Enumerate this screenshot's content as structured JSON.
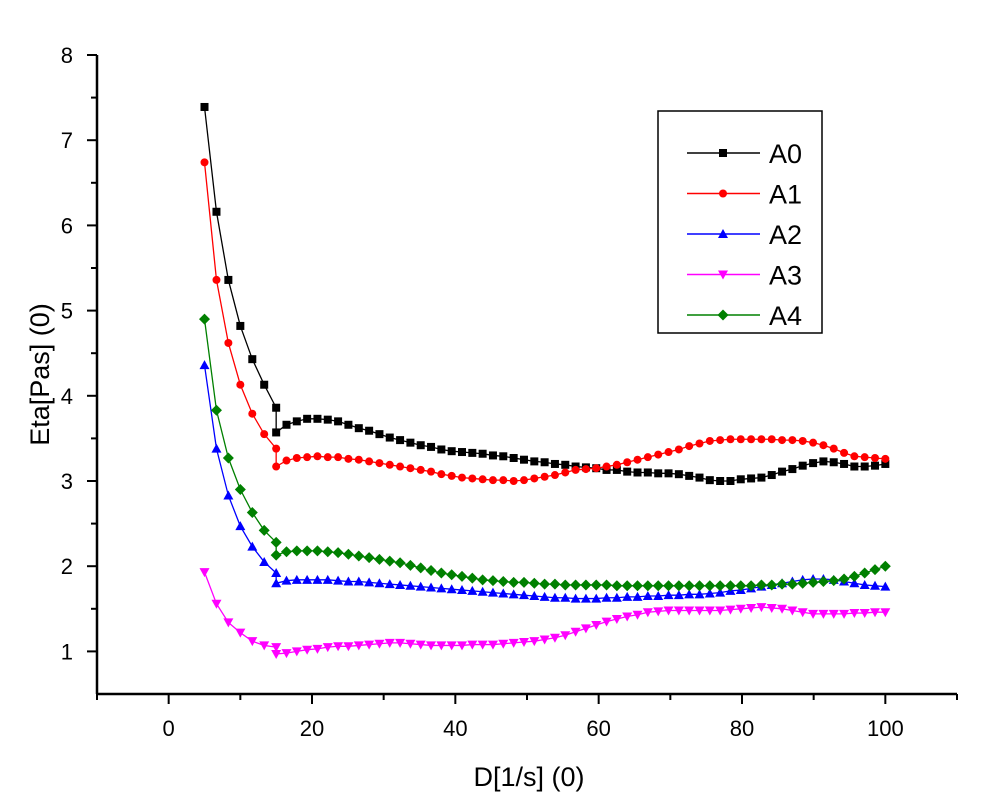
{
  "chart_data": {
    "type": "line",
    "title": "",
    "xlabel": "D[1/s] (0)",
    "ylabel": "Eta[Pas] (0)",
    "xlim": [
      -10,
      110
    ],
    "ylim": [
      0.5,
      8
    ],
    "x_major_ticks": [
      0,
      20,
      40,
      60,
      80,
      100
    ],
    "x_tick_labels": [
      "0",
      "20",
      "40",
      "60",
      "80",
      "100"
    ],
    "x_minor_ticks": [
      -10,
      10,
      30,
      50,
      70,
      90,
      110
    ],
    "y_major_ticks": [
      1,
      2,
      3,
      4,
      5,
      6,
      7,
      8
    ],
    "y_tick_labels": [
      "1",
      "2",
      "3",
      "4",
      "5",
      "6",
      "7",
      "8"
    ],
    "y_minor_ticks": [
      1.5,
      2.5,
      3.5,
      4.5,
      5.5,
      6.5,
      7.5
    ],
    "grid": false,
    "legend_position": "top-right",
    "x_segment1": [
      5,
      6.67,
      8.33,
      10,
      11.67,
      13.33,
      15
    ],
    "x_segment2": [
      15,
      16.44,
      17.88,
      19.32,
      20.76,
      22.2,
      23.64,
      25.08,
      26.53,
      27.97,
      29.41,
      30.85,
      32.29,
      33.73,
      35.17,
      36.61,
      38.05,
      39.49,
      40.93,
      42.37,
      43.81,
      45.25,
      46.69,
      48.14,
      49.58,
      51.02,
      52.46,
      53.9,
      55.34,
      56.78,
      58.22,
      59.66,
      61.1,
      62.54,
      63.98,
      65.42,
      66.86,
      68.31,
      69.75,
      71.19,
      72.63,
      74.07,
      75.51,
      76.95,
      78.39,
      79.83,
      81.27,
      82.71,
      84.15,
      85.59,
      87.03,
      88.47,
      89.92,
      91.36,
      92.8,
      94.24,
      95.68,
      97.12,
      98.56,
      100
    ],
    "series": [
      {
        "name": "A0",
        "color": "#000000",
        "marker": "square",
        "segment1": [
          7.39,
          6.16,
          5.36,
          4.82,
          4.43,
          4.13,
          3.86
        ],
        "segment2": [
          3.57,
          3.66,
          3.7,
          3.73,
          3.73,
          3.72,
          3.7,
          3.66,
          3.62,
          3.59,
          3.55,
          3.51,
          3.48,
          3.45,
          3.42,
          3.4,
          3.37,
          3.35,
          3.34,
          3.33,
          3.32,
          3.3,
          3.29,
          3.27,
          3.25,
          3.23,
          3.22,
          3.2,
          3.19,
          3.17,
          3.16,
          3.15,
          3.13,
          3.13,
          3.11,
          3.1,
          3.1,
          3.09,
          3.09,
          3.08,
          3.06,
          3.04,
          3.01,
          3.0,
          3.0,
          3.02,
          3.03,
          3.04,
          3.07,
          3.11,
          3.14,
          3.18,
          3.21,
          3.23,
          3.22,
          3.2,
          3.17,
          3.17,
          3.18,
          3.2
        ]
      },
      {
        "name": "A1",
        "color": "#ff0000",
        "marker": "circle",
        "segment1": [
          6.74,
          5.36,
          4.62,
          4.13,
          3.79,
          3.55,
          3.38
        ],
        "segment2": [
          3.17,
          3.24,
          3.27,
          3.28,
          3.29,
          3.28,
          3.28,
          3.26,
          3.25,
          3.23,
          3.21,
          3.19,
          3.17,
          3.15,
          3.13,
          3.11,
          3.08,
          3.06,
          3.04,
          3.03,
          3.02,
          3.01,
          3.01,
          3.0,
          3.01,
          3.03,
          3.05,
          3.07,
          3.1,
          3.13,
          3.14,
          3.15,
          3.17,
          3.19,
          3.22,
          3.25,
          3.28,
          3.31,
          3.34,
          3.37,
          3.41,
          3.44,
          3.47,
          3.48,
          3.49,
          3.49,
          3.49,
          3.49,
          3.49,
          3.48,
          3.48,
          3.47,
          3.45,
          3.42,
          3.38,
          3.33,
          3.29,
          3.28,
          3.27,
          3.26
        ]
      },
      {
        "name": "A2",
        "color": "#0000ff",
        "marker": "triangle-up",
        "segment1": [
          4.36,
          3.38,
          2.83,
          2.47,
          2.23,
          2.05,
          1.92
        ],
        "segment2": [
          1.8,
          1.83,
          1.84,
          1.84,
          1.84,
          1.84,
          1.83,
          1.82,
          1.82,
          1.81,
          1.8,
          1.79,
          1.78,
          1.77,
          1.76,
          1.75,
          1.74,
          1.73,
          1.72,
          1.71,
          1.7,
          1.69,
          1.68,
          1.67,
          1.66,
          1.65,
          1.64,
          1.63,
          1.63,
          1.62,
          1.62,
          1.62,
          1.63,
          1.63,
          1.64,
          1.64,
          1.65,
          1.65,
          1.66,
          1.66,
          1.67,
          1.67,
          1.68,
          1.69,
          1.71,
          1.72,
          1.74,
          1.76,
          1.78,
          1.8,
          1.82,
          1.84,
          1.85,
          1.85,
          1.84,
          1.82,
          1.8,
          1.78,
          1.77,
          1.76
        ]
      },
      {
        "name": "A3",
        "color": "#ff00ff",
        "marker": "triangle-down",
        "segment1": [
          1.93,
          1.56,
          1.34,
          1.22,
          1.12,
          1.07,
          1.05
        ],
        "segment2": [
          0.97,
          0.98,
          1.0,
          1.02,
          1.03,
          1.05,
          1.06,
          1.06,
          1.07,
          1.08,
          1.09,
          1.1,
          1.1,
          1.09,
          1.08,
          1.07,
          1.07,
          1.07,
          1.07,
          1.08,
          1.08,
          1.08,
          1.09,
          1.1,
          1.11,
          1.12,
          1.14,
          1.16,
          1.19,
          1.23,
          1.27,
          1.31,
          1.35,
          1.38,
          1.41,
          1.43,
          1.46,
          1.47,
          1.48,
          1.48,
          1.48,
          1.48,
          1.48,
          1.48,
          1.49,
          1.5,
          1.51,
          1.52,
          1.51,
          1.5,
          1.48,
          1.46,
          1.44,
          1.44,
          1.44,
          1.44,
          1.45,
          1.45,
          1.46,
          1.46
        ]
      },
      {
        "name": "A4",
        "color": "#008000",
        "marker": "diamond",
        "segment1": [
          4.9,
          3.83,
          3.27,
          2.9,
          2.63,
          2.42,
          2.28
        ],
        "segment2": [
          2.13,
          2.17,
          2.18,
          2.18,
          2.18,
          2.17,
          2.16,
          2.14,
          2.12,
          2.1,
          2.08,
          2.06,
          2.04,
          2.01,
          1.98,
          1.95,
          1.92,
          1.9,
          1.88,
          1.86,
          1.84,
          1.83,
          1.82,
          1.81,
          1.81,
          1.8,
          1.79,
          1.79,
          1.78,
          1.78,
          1.78,
          1.78,
          1.78,
          1.77,
          1.77,
          1.77,
          1.77,
          1.77,
          1.77,
          1.77,
          1.77,
          1.77,
          1.77,
          1.77,
          1.77,
          1.77,
          1.77,
          1.78,
          1.78,
          1.79,
          1.79,
          1.8,
          1.81,
          1.82,
          1.83,
          1.85,
          1.88,
          1.92,
          1.96,
          2.0
        ]
      }
    ]
  }
}
